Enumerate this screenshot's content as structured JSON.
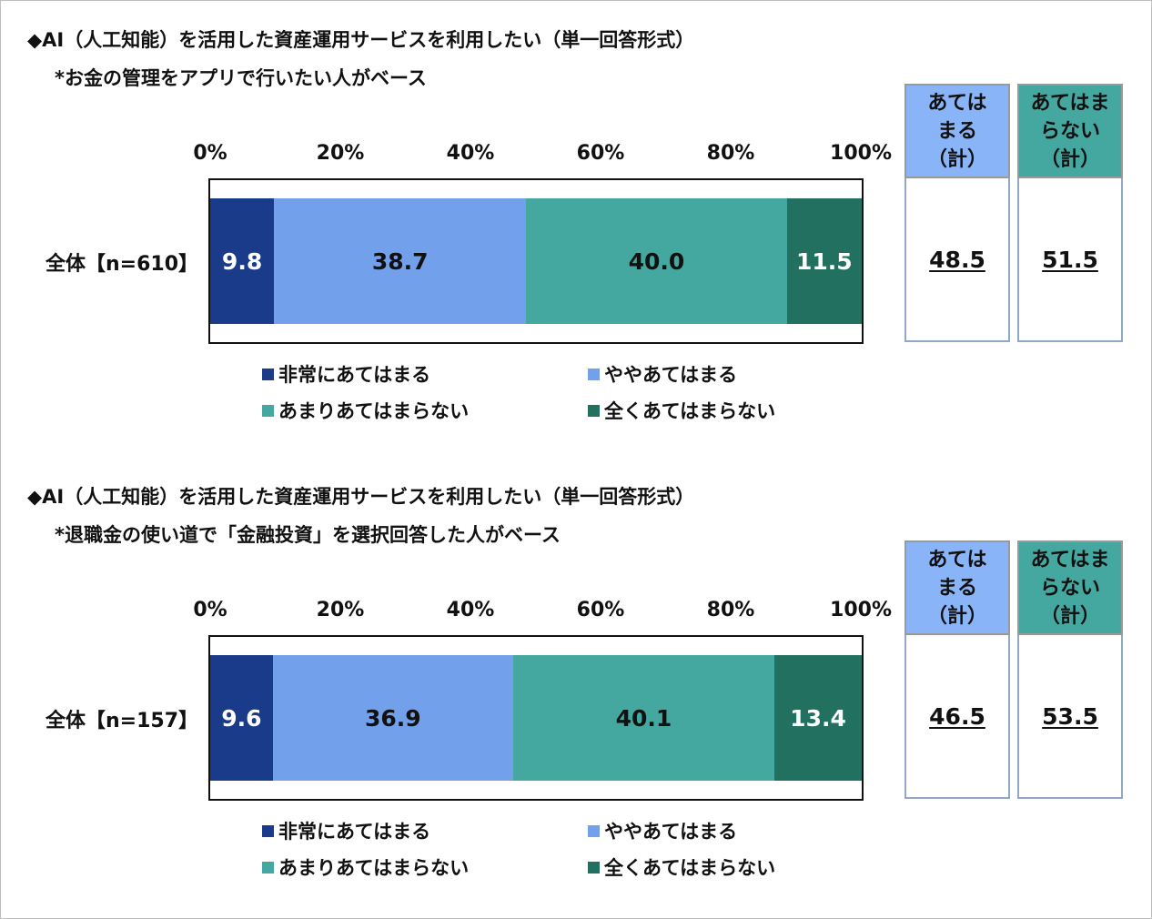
{
  "colors": {
    "very_applies": "#1a3a8a",
    "somewhat_applies": "#72a0eb",
    "not_much": "#45a8a0",
    "not_at_all": "#22705f",
    "applies_total_header": "#8ab4f8",
    "not_applies_total_header": "#45a8a0"
  },
  "legend": [
    {
      "key": "very_applies",
      "label": "非常にあてはまる"
    },
    {
      "key": "somewhat_applies",
      "label": "ややあてはまる"
    },
    {
      "key": "not_much",
      "label": "あまりあてはまらない"
    },
    {
      "key": "not_at_all",
      "label": "全くあてはまらない"
    }
  ],
  "summary_headers": {
    "applies_total": "あては\nまる\n（計）",
    "not_applies_total": "あてはま\nらない\n（計）"
  },
  "chart_data": [
    {
      "type": "bar",
      "orientation": "horizontal",
      "stacked": true,
      "title": "◆AI（人工知能）を活用した資産運用サービスを利用したい（単一回答形式）",
      "subtitle": "*お金の管理をアプリで行いたい人がベース",
      "x_ticks": [
        "0%",
        "20%",
        "40%",
        "60%",
        "80%",
        "100%"
      ],
      "xlim": [
        0,
        100
      ],
      "categories": [
        "全体【n=610】"
      ],
      "series": [
        {
          "name": "非常にあてはまる",
          "values": [
            9.8
          ]
        },
        {
          "name": "ややあてはまる",
          "values": [
            38.7
          ]
        },
        {
          "name": "あまりあてはまらない",
          "values": [
            40.0
          ]
        },
        {
          "name": "全くあてはまらない",
          "values": [
            11.5
          ]
        }
      ],
      "value_labels": [
        "9.8",
        "38.7",
        "40.0",
        "11.5"
      ],
      "applies_total": "48.5",
      "not_applies_total": "51.5",
      "legend_position": "bottom"
    },
    {
      "type": "bar",
      "orientation": "horizontal",
      "stacked": true,
      "title": "◆AI（人工知能）を活用した資産運用サービスを利用したい（単一回答形式）",
      "subtitle": "*退職金の使い道で「金融投資」を選択回答した人がベース",
      "x_ticks": [
        "0%",
        "20%",
        "40%",
        "60%",
        "80%",
        "100%"
      ],
      "xlim": [
        0,
        100
      ],
      "categories": [
        "全体【n=157】"
      ],
      "series": [
        {
          "name": "非常にあてはまる",
          "values": [
            9.6
          ]
        },
        {
          "name": "ややあてはまる",
          "values": [
            36.9
          ]
        },
        {
          "name": "あまりあてはまらない",
          "values": [
            40.1
          ]
        },
        {
          "name": "全くあてはまらない",
          "values": [
            13.4
          ]
        }
      ],
      "value_labels": [
        "9.6",
        "36.9",
        "40.1",
        "13.4"
      ],
      "applies_total": "46.5",
      "not_applies_total": "53.5",
      "legend_position": "bottom"
    }
  ]
}
